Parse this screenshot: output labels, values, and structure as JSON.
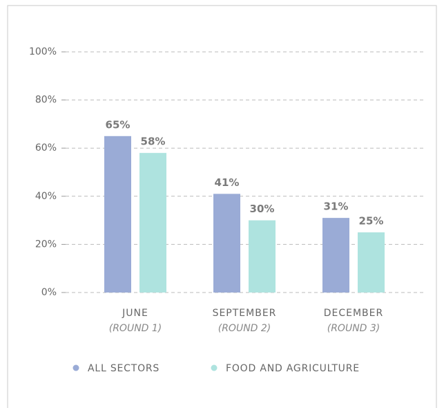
{
  "chart_data": {
    "type": "bar",
    "categories": [
      "JUNE",
      "SEPTEMBER",
      "DECEMBER"
    ],
    "category_sublabels": [
      "(ROUND 1)",
      "(ROUND 2)",
      "(ROUND 3)"
    ],
    "series": [
      {
        "name": "ALL SECTORS",
        "color": "#9aabd6",
        "values": [
          65,
          41,
          31
        ],
        "value_labels": [
          "65%",
          "41%",
          "31%"
        ]
      },
      {
        "name": "FOOD AND AGRICULTURE",
        "color": "#aee3df",
        "values": [
          58,
          30,
          25
        ],
        "value_labels": [
          "58%",
          "30%",
          "25%"
        ]
      }
    ],
    "ylim": [
      0,
      100
    ],
    "yticks": [
      {
        "value": 0,
        "label": "0%"
      },
      {
        "value": 20,
        "label": "20%"
      },
      {
        "value": 40,
        "label": "40%"
      },
      {
        "value": 60,
        "label": "60%"
      },
      {
        "value": 80,
        "label": "80%"
      },
      {
        "value": 100,
        "label": "100%"
      }
    ],
    "grid": true,
    "legend": "bottom"
  }
}
